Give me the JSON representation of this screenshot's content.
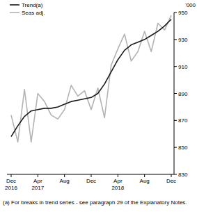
{
  "chart_data": {
    "type": "line",
    "y_label": "'000",
    "note": "(a) For breaks in trend series - see paragraph 29 of the Explanatory Notes.",
    "categories": [
      "Dec 2016",
      null,
      null,
      null,
      "Apr 2017",
      null,
      null,
      null,
      "Aug",
      null,
      null,
      null,
      "Dec",
      null,
      null,
      null,
      "Apr 2018",
      null,
      null,
      null,
      "Aug",
      null,
      null,
      null,
      "Dec"
    ],
    "series": [
      {
        "name": "Trend(a)",
        "color": "#1a1a1a",
        "values": [
          858,
          866,
          873,
          877,
          878,
          879,
          879,
          880,
          882,
          884,
          885,
          886,
          887,
          890,
          897,
          906,
          915,
          922,
          926,
          928,
          930,
          933,
          936,
          940,
          945
        ]
      },
      {
        "name": "Seas adj.",
        "color": "#b3b3b3",
        "values": [
          874,
          854,
          893,
          854,
          890,
          884,
          874,
          871,
          878,
          896,
          888,
          892,
          878,
          894,
          872,
          911,
          923,
          934,
          914,
          921,
          936,
          921,
          942,
          937,
          948
        ]
      }
    ],
    "ylim": [
      830,
      950
    ],
    "yticks": [
      830,
      850,
      870,
      890,
      910,
      930,
      950
    ],
    "grid": false,
    "legend": "top-left"
  }
}
